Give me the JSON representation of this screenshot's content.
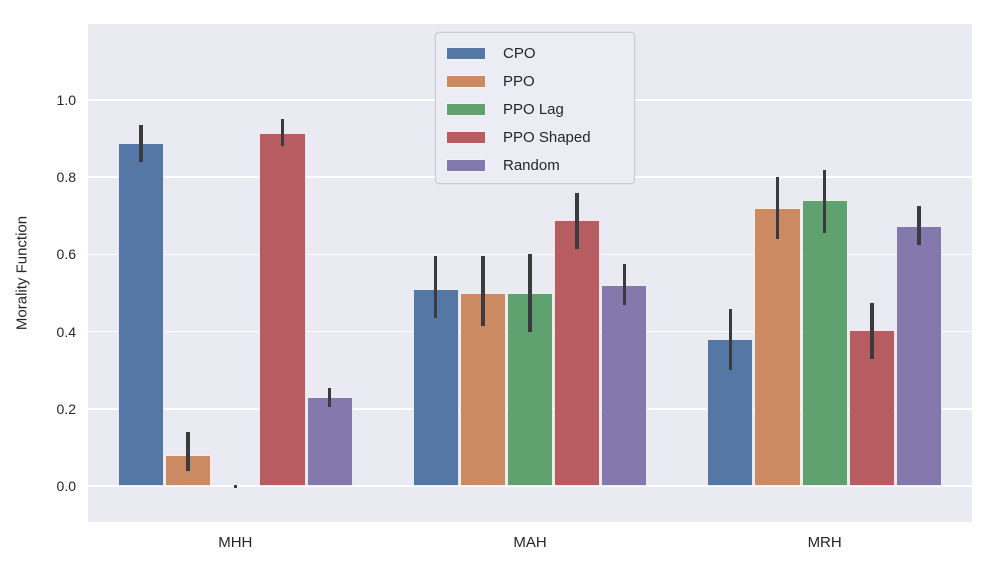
{
  "figure": {
    "background": "#ffffff",
    "plot_background": "#eaeaf2",
    "grid_color": "#ffffff",
    "errorbar_color": "#3a3a3f",
    "text_color": "#262626"
  },
  "chart_data": {
    "type": "bar",
    "title": "",
    "xlabel": "",
    "ylabel": "Morality Function",
    "categories": [
      "MHH",
      "MAH",
      "MRH"
    ],
    "yticks": [
      0.0,
      0.2,
      0.4,
      0.6,
      0.8,
      1.0
    ],
    "ylim": [
      -0.093,
      1.197
    ],
    "grid": true,
    "legend_position": "upper center inside",
    "bar_group_width_fraction": 0.8,
    "series": [
      {
        "name": "CPO",
        "color": "#5577a5",
        "values": [
          0.89,
          0.51,
          0.38
        ],
        "ci_low": [
          0.84,
          0.435,
          0.3
        ],
        "ci_high": [
          0.935,
          0.595,
          0.46
        ]
      },
      {
        "name": "PPO",
        "color": "#cb8a62",
        "values": [
          0.08,
          0.5,
          0.72
        ],
        "ci_low": [
          0.04,
          0.415,
          0.64
        ],
        "ci_high": [
          0.14,
          0.595,
          0.8
        ]
      },
      {
        "name": "PPO Lag",
        "color": "#5fa26f",
        "values": [
          0.0,
          0.5,
          0.74
        ],
        "ci_low": [
          0.0,
          0.4,
          0.655
        ],
        "ci_high": [
          0.004,
          0.6,
          0.82
        ]
      },
      {
        "name": "PPO Shaped",
        "color": "#b75d61",
        "values": [
          0.915,
          0.69,
          0.405
        ],
        "ci_low": [
          0.88,
          0.615,
          0.33
        ],
        "ci_high": [
          0.95,
          0.76,
          0.475
        ]
      },
      {
        "name": "Random",
        "color": "#8379ac",
        "values": [
          0.23,
          0.52,
          0.675
        ],
        "ci_low": [
          0.205,
          0.47,
          0.625
        ],
        "ci_high": [
          0.255,
          0.575,
          0.725
        ]
      }
    ]
  }
}
